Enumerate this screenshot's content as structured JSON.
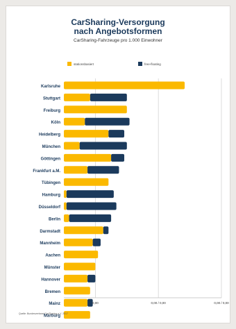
{
  "chart_data": {
    "type": "bar",
    "orientation": "horizontal",
    "stacked": true,
    "title_line1": "CarSharing-Versorgung",
    "title_line2": "nach Angebotsformen",
    "subtitle": "CarSharing-Fahrzeuge pro 1.000 Einwohner",
    "legend_position": "top",
    "series": [
      {
        "name": "stationsbasiert",
        "color": "#fbb900",
        "values": [
          2.3,
          0.5,
          1.2,
          0.4,
          0.85,
          0.3,
          0.9,
          0.45,
          0.85,
          0.05,
          0.05,
          0.1,
          0.75,
          0.55,
          0.65,
          0.6,
          0.45,
          0.5,
          0.45,
          0.5
        ]
      },
      {
        "name": "free-floating",
        "color": "#1b3a5c",
        "values": [
          0.0,
          0.7,
          0.0,
          0.85,
          0.3,
          0.9,
          0.25,
          0.6,
          0.0,
          0.9,
          0.95,
          0.8,
          0.1,
          0.15,
          0.0,
          0.0,
          0.15,
          0.0,
          0.1,
          0.0
        ]
      }
    ],
    "categories": [
      "Karlsruhe",
      "Stuttgart",
      "Freiburg",
      "Köln",
      "Heidelberg",
      "München",
      "Göttingen",
      "Frankfurt a.M.",
      "Tübingen",
      "Hamburg",
      "Düsseldorf",
      "Berlin",
      "Darmstadt",
      "Mannheim",
      "Aachen",
      "Münster",
      "Hannover",
      "Bremen",
      "Mainz",
      "Marburg"
    ],
    "xlim": [
      0,
      3.0
    ],
    "xticks": [
      0.6,
      1.8,
      3.0
    ],
    "xtick_labels": [
      "0,00",
      "0,00 / 0,00",
      "0,00 / 0,00"
    ],
    "grid": true
  },
  "source": "Quelle: Bundesverband CarSharing e.V. 2017"
}
